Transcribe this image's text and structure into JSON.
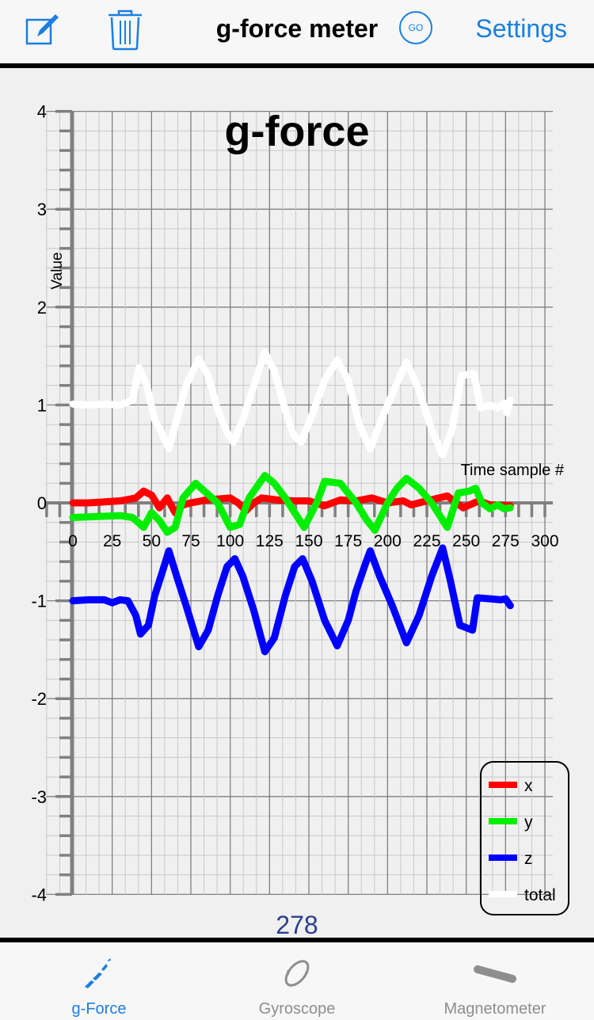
{
  "navbar": {
    "title": "g-force meter",
    "go_label": "GO",
    "settings_label": "Settings",
    "icons": {
      "left1": "compose-icon",
      "left2": "trash-icon"
    },
    "accent_color": "#1a7fe0"
  },
  "counter": "278",
  "tabs": [
    {
      "label": "g-Force",
      "icon": "gforce-icon",
      "active": true
    },
    {
      "label": "Gyroscope",
      "icon": "gyroscope-icon",
      "active": false
    },
    {
      "label": "Magnetometer",
      "icon": "magnetometer-icon",
      "active": false
    }
  ],
  "chart_data": {
    "type": "line",
    "title": "g-force",
    "xlabel": "Time sample #",
    "ylabel": "Value",
    "xlim": [
      0,
      300
    ],
    "ylim": [
      -4,
      4
    ],
    "x_ticks": [
      "0",
      "25",
      "50",
      "75",
      "100",
      "125",
      "150",
      "175",
      "200",
      "225",
      "250",
      "275",
      "300"
    ],
    "y_ticks": [
      "4",
      "3",
      "2",
      "1",
      "0",
      "-1",
      "-2",
      "-3",
      "-4"
    ],
    "grid": true,
    "legend_position": "bottom-right",
    "series": [
      {
        "name": "x",
        "color": "#ff0000",
        "points": [
          [
            0,
            0
          ],
          [
            10,
            0
          ],
          [
            20,
            0.01
          ],
          [
            30,
            0.02
          ],
          [
            40,
            0.05
          ],
          [
            45,
            0.12
          ],
          [
            50,
            0.08
          ],
          [
            55,
            -0.05
          ],
          [
            60,
            0.05
          ],
          [
            65,
            -0.1
          ],
          [
            70,
            -0.02
          ],
          [
            75,
            0.0
          ],
          [
            85,
            0.03
          ],
          [
            100,
            0.05
          ],
          [
            105,
            0.0
          ],
          [
            110,
            -0.08
          ],
          [
            115,
            0.0
          ],
          [
            120,
            0.05
          ],
          [
            130,
            0.03
          ],
          [
            140,
            0.02
          ],
          [
            150,
            0.02
          ],
          [
            160,
            -0.03
          ],
          [
            170,
            0.03
          ],
          [
            180,
            0.02
          ],
          [
            190,
            0.05
          ],
          [
            200,
            0.0
          ],
          [
            210,
            0.02
          ],
          [
            215,
            -0.02
          ],
          [
            225,
            0.02
          ],
          [
            238,
            0.07
          ],
          [
            248,
            -0.05
          ],
          [
            258,
            0.02
          ],
          [
            265,
            -0.02
          ],
          [
            278,
            -0.03
          ]
        ]
      },
      {
        "name": "y",
        "color": "#00ee00",
        "points": [
          [
            0,
            -0.15
          ],
          [
            15,
            -0.14
          ],
          [
            30,
            -0.13
          ],
          [
            38,
            -0.15
          ],
          [
            45,
            -0.25
          ],
          [
            50,
            -0.1
          ],
          [
            55,
            -0.18
          ],
          [
            60,
            -0.3
          ],
          [
            65,
            -0.25
          ],
          [
            70,
            0.05
          ],
          [
            78,
            0.2
          ],
          [
            85,
            0.1
          ],
          [
            92,
            0.0
          ],
          [
            100,
            -0.25
          ],
          [
            106,
            -0.22
          ],
          [
            112,
            0.05
          ],
          [
            122,
            0.28
          ],
          [
            128,
            0.2
          ],
          [
            135,
            0.05
          ],
          [
            147,
            -0.25
          ],
          [
            155,
            0.0
          ],
          [
            160,
            0.22
          ],
          [
            170,
            0.2
          ],
          [
            180,
            0.0
          ],
          [
            187,
            -0.18
          ],
          [
            192,
            -0.28
          ],
          [
            200,
            0.0
          ],
          [
            206,
            0.15
          ],
          [
            212,
            0.25
          ],
          [
            220,
            0.15
          ],
          [
            228,
            0.0
          ],
          [
            238,
            -0.25
          ],
          [
            245,
            0.1
          ],
          [
            252,
            0.12
          ],
          [
            256,
            0.15
          ],
          [
            260,
            0.0
          ],
          [
            265,
            -0.06
          ],
          [
            270,
            -0.02
          ],
          [
            274,
            -0.06
          ],
          [
            278,
            -0.05
          ]
        ]
      },
      {
        "name": "z",
        "color": "#0000ff",
        "points": [
          [
            0,
            -1.0
          ],
          [
            10,
            -0.99
          ],
          [
            20,
            -0.99
          ],
          [
            25,
            -1.02
          ],
          [
            30,
            -0.99
          ],
          [
            35,
            -1.0
          ],
          [
            40,
            -1.15
          ],
          [
            43,
            -1.34
          ],
          [
            48,
            -1.25
          ],
          [
            52,
            -0.95
          ],
          [
            57,
            -0.7
          ],
          [
            61,
            -0.49
          ],
          [
            66,
            -0.75
          ],
          [
            72,
            -1.05
          ],
          [
            80,
            -1.47
          ],
          [
            86,
            -1.3
          ],
          [
            92,
            -0.95
          ],
          [
            98,
            -0.65
          ],
          [
            103,
            -0.57
          ],
          [
            108,
            -0.75
          ],
          [
            115,
            -1.1
          ],
          [
            122,
            -1.52
          ],
          [
            128,
            -1.38
          ],
          [
            135,
            -0.95
          ],
          [
            141,
            -0.65
          ],
          [
            146,
            -0.57
          ],
          [
            152,
            -0.8
          ],
          [
            160,
            -1.2
          ],
          [
            168,
            -1.46
          ],
          [
            175,
            -1.2
          ],
          [
            180,
            -0.9
          ],
          [
            186,
            -0.62
          ],
          [
            189,
            -0.49
          ],
          [
            195,
            -0.75
          ],
          [
            203,
            -1.05
          ],
          [
            212,
            -1.43
          ],
          [
            220,
            -1.15
          ],
          [
            228,
            -0.75
          ],
          [
            235,
            -0.46
          ],
          [
            240,
            -0.8
          ],
          [
            246,
            -1.25
          ],
          [
            254,
            -1.3
          ],
          [
            257,
            -0.97
          ],
          [
            265,
            -0.98
          ],
          [
            272,
            -0.99
          ],
          [
            275,
            -0.98
          ],
          [
            278,
            -1.05
          ]
        ]
      },
      {
        "name": "total",
        "color": "#ffffff",
        "points": [
          [
            0,
            1.01
          ],
          [
            10,
            1.0
          ],
          [
            20,
            1.01
          ],
          [
            30,
            1.0
          ],
          [
            38,
            1.05
          ],
          [
            42,
            1.38
          ],
          [
            47,
            1.2
          ],
          [
            52,
            0.85
          ],
          [
            57,
            0.7
          ],
          [
            61,
            0.55
          ],
          [
            66,
            0.85
          ],
          [
            72,
            1.2
          ],
          [
            80,
            1.47
          ],
          [
            86,
            1.3
          ],
          [
            92,
            0.95
          ],
          [
            98,
            0.72
          ],
          [
            102,
            0.62
          ],
          [
            108,
            0.85
          ],
          [
            115,
            1.2
          ],
          [
            122,
            1.54
          ],
          [
            128,
            1.35
          ],
          [
            135,
            0.95
          ],
          [
            140,
            0.7
          ],
          [
            145,
            0.62
          ],
          [
            152,
            0.9
          ],
          [
            160,
            1.25
          ],
          [
            168,
            1.46
          ],
          [
            175,
            1.25
          ],
          [
            182,
            0.8
          ],
          [
            189,
            0.55
          ],
          [
            196,
            0.85
          ],
          [
            204,
            1.15
          ],
          [
            212,
            1.44
          ],
          [
            220,
            1.15
          ],
          [
            228,
            0.75
          ],
          [
            235,
            0.49
          ],
          [
            241,
            0.75
          ],
          [
            247,
            1.3
          ],
          [
            255,
            1.32
          ],
          [
            259,
            0.97
          ],
          [
            265,
            1.0
          ],
          [
            270,
            0.97
          ],
          [
            274,
            1.02
          ],
          [
            276,
            0.92
          ],
          [
            278,
            1.05
          ]
        ]
      }
    ]
  }
}
